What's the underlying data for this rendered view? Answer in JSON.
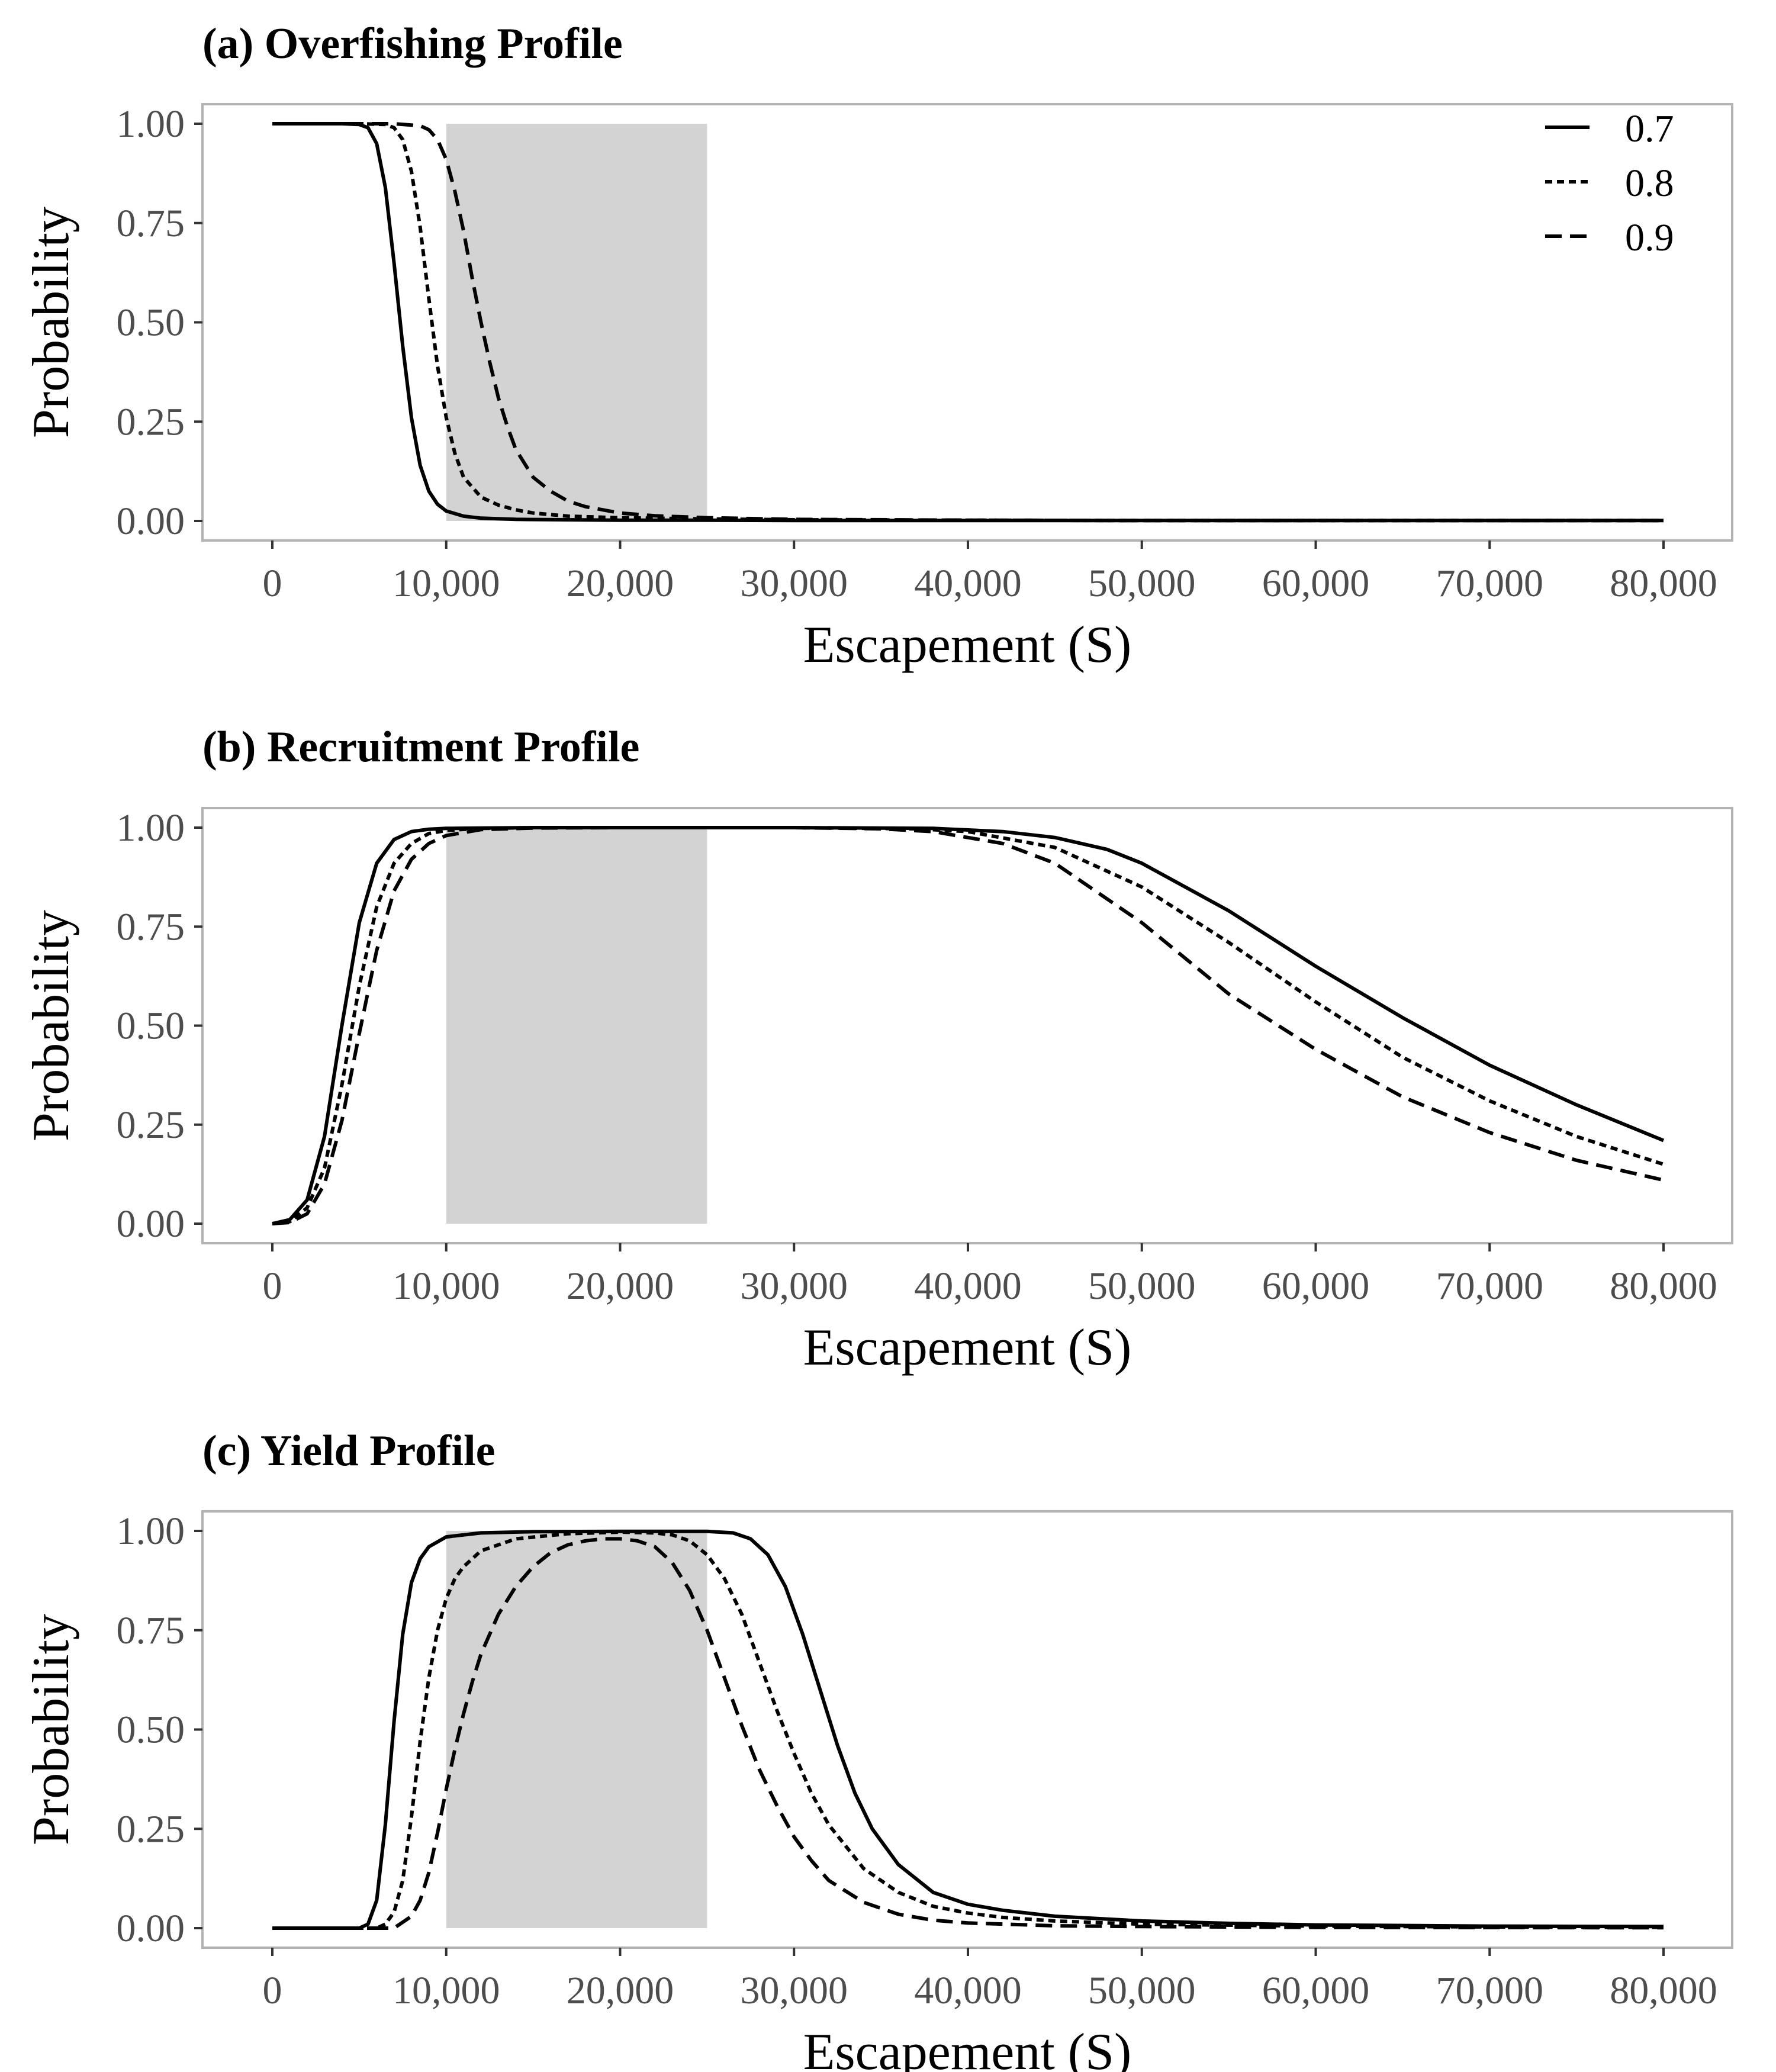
{
  "chart_data": [
    {
      "type": "line",
      "title": "(a) Overfishing Profile",
      "xlabel": "Escapement (S)",
      "ylabel": "Probability",
      "xlim": [
        0,
        80000
      ],
      "ylim": [
        0,
        1
      ],
      "x_ticks": [
        "0",
        "10,000",
        "20,000",
        "30,000",
        "40,000",
        "50,000",
        "60,000",
        "70,000",
        "80,000"
      ],
      "y_ticks": [
        "0.00",
        "0.25",
        "0.50",
        "0.75",
        "1.00"
      ],
      "shaded_range": [
        10000,
        25000
      ],
      "shade_color": "#d3d3d3",
      "legend": {
        "placement": "top-right",
        "entries": [
          "0.7",
          "0.8",
          "0.9"
        ]
      },
      "series": [
        {
          "name": "0.7",
          "style": "solid",
          "x": [
            0,
            4000,
            5000,
            5500,
            6000,
            6500,
            7000,
            7500,
            8000,
            8500,
            9000,
            9500,
            10000,
            11000,
            12000,
            14000,
            17000,
            20000,
            25000,
            30000,
            40000,
            50000,
            60000,
            70000,
            80000
          ],
          "y": [
            1.0,
            1.0,
            0.998,
            0.99,
            0.95,
            0.84,
            0.65,
            0.44,
            0.26,
            0.14,
            0.075,
            0.042,
            0.025,
            0.012,
            0.007,
            0.004,
            0.003,
            0.002,
            0.002,
            0.001,
            0.001,
            0.001,
            0.001,
            0.001,
            0.001
          ]
        },
        {
          "name": "0.8",
          "style": "dotted",
          "x": [
            0,
            5000,
            6500,
            7000,
            7500,
            8000,
            8500,
            9000,
            9500,
            10000,
            10500,
            11000,
            12000,
            13000,
            14000,
            15000,
            17000,
            20000,
            25000,
            30000,
            40000,
            50000,
            60000,
            70000,
            80000
          ],
          "y": [
            1.0,
            1.0,
            0.998,
            0.99,
            0.96,
            0.88,
            0.74,
            0.56,
            0.39,
            0.26,
            0.17,
            0.11,
            0.06,
            0.04,
            0.028,
            0.02,
            0.012,
            0.008,
            0.005,
            0.003,
            0.002,
            0.001,
            0.001,
            0.001,
            0.001
          ]
        },
        {
          "name": "0.9",
          "style": "dashed",
          "x": [
            0,
            7000,
            8500,
            9000,
            9500,
            10000,
            10500,
            11000,
            11500,
            12000,
            12500,
            13000,
            13500,
            14000,
            15000,
            16000,
            17000,
            18000,
            20000,
            22000,
            25000,
            30000,
            40000,
            50000,
            60000,
            70000,
            80000
          ],
          "y": [
            1.0,
            1.0,
            0.995,
            0.985,
            0.96,
            0.91,
            0.83,
            0.73,
            0.61,
            0.5,
            0.4,
            0.31,
            0.24,
            0.18,
            0.11,
            0.075,
            0.05,
            0.036,
            0.02,
            0.013,
            0.008,
            0.004,
            0.002,
            0.001,
            0.001,
            0.001,
            0.001
          ]
        }
      ]
    },
    {
      "type": "line",
      "title": "(b) Recruitment Profile",
      "xlabel": "Escapement (S)",
      "ylabel": "Probability",
      "xlim": [
        0,
        80000
      ],
      "ylim": [
        0,
        1
      ],
      "x_ticks": [
        "0",
        "10,000",
        "20,000",
        "30,000",
        "40,000",
        "50,000",
        "60,000",
        "70,000",
        "80,000"
      ],
      "y_ticks": [
        "0.00",
        "0.25",
        "0.50",
        "0.75",
        "1.00"
      ],
      "shaded_range": [
        10000,
        25000
      ],
      "shade_color": "#d3d3d3",
      "series": [
        {
          "name": "0.7",
          "style": "solid",
          "x": [
            0,
            1000,
            2000,
            3000,
            4000,
            5000,
            6000,
            7000,
            8000,
            9000,
            10000,
            12000,
            15000,
            20000,
            30000,
            38000,
            42000,
            45000,
            48000,
            50000,
            55000,
            60000,
            65000,
            70000,
            75000,
            80000
          ],
          "y": [
            0.0,
            0.01,
            0.06,
            0.22,
            0.5,
            0.76,
            0.91,
            0.97,
            0.99,
            0.996,
            0.998,
            0.999,
            1.0,
            1.0,
            1.0,
            0.998,
            0.99,
            0.975,
            0.945,
            0.91,
            0.79,
            0.65,
            0.52,
            0.4,
            0.3,
            0.21
          ]
        },
        {
          "name": "0.8",
          "style": "dotted",
          "x": [
            0,
            1000,
            2000,
            3000,
            4000,
            5000,
            6000,
            7000,
            8000,
            9000,
            10000,
            12000,
            15000,
            20000,
            30000,
            37000,
            40000,
            45000,
            50000,
            55000,
            60000,
            65000,
            70000,
            75000,
            80000
          ],
          "y": [
            0.0,
            0.005,
            0.04,
            0.14,
            0.35,
            0.6,
            0.8,
            0.91,
            0.96,
            0.985,
            0.993,
            0.998,
            1.0,
            1.0,
            1.0,
            0.997,
            0.99,
            0.95,
            0.85,
            0.71,
            0.56,
            0.42,
            0.31,
            0.22,
            0.15
          ]
        },
        {
          "name": "0.9",
          "style": "dashed",
          "x": [
            0,
            1000,
            2000,
            3000,
            4000,
            5000,
            6000,
            7000,
            8000,
            9000,
            10000,
            12000,
            15000,
            20000,
            30000,
            35000,
            38000,
            42000,
            45000,
            50000,
            55000,
            60000,
            65000,
            70000,
            75000,
            80000
          ],
          "y": [
            0.0,
            0.003,
            0.025,
            0.1,
            0.26,
            0.48,
            0.69,
            0.84,
            0.92,
            0.96,
            0.98,
            0.995,
            0.999,
            1.0,
            1.0,
            0.997,
            0.99,
            0.96,
            0.91,
            0.76,
            0.58,
            0.44,
            0.32,
            0.23,
            0.16,
            0.11
          ]
        }
      ]
    },
    {
      "type": "line",
      "title": "(c) Yield Profile",
      "xlabel": "Escapement (S)",
      "ylabel": "Probability",
      "xlim": [
        0,
        80000
      ],
      "ylim": [
        0,
        1
      ],
      "x_ticks": [
        "0",
        "10,000",
        "20,000",
        "30,000",
        "40,000",
        "50,000",
        "60,000",
        "70,000",
        "80,000"
      ],
      "y_ticks": [
        "0.00",
        "0.25",
        "0.50",
        "0.75",
        "1.00"
      ],
      "shaded_range": [
        10000,
        25000
      ],
      "shade_color": "#d3d3d3",
      "series": [
        {
          "name": "0.7",
          "style": "solid",
          "x": [
            0,
            5000,
            5500,
            6000,
            6500,
            7000,
            7500,
            8000,
            8500,
            9000,
            10000,
            12000,
            15000,
            20000,
            25000,
            26500,
            27500,
            28500,
            29500,
            30500,
            31500,
            32500,
            33500,
            34500,
            36000,
            38000,
            40000,
            42000,
            45000,
            50000,
            55000,
            60000,
            70000,
            80000
          ],
          "y": [
            0.0,
            0.0,
            0.01,
            0.07,
            0.26,
            0.52,
            0.74,
            0.87,
            0.93,
            0.96,
            0.985,
            0.995,
            0.998,
            0.999,
            0.999,
            0.995,
            0.98,
            0.94,
            0.86,
            0.74,
            0.6,
            0.46,
            0.34,
            0.25,
            0.16,
            0.09,
            0.06,
            0.045,
            0.03,
            0.018,
            0.012,
            0.008,
            0.005,
            0.004
          ]
        },
        {
          "name": "0.8",
          "style": "dotted",
          "x": [
            0,
            6000,
            6500,
            7000,
            7500,
            8000,
            8500,
            9000,
            9500,
            10000,
            10500,
            11000,
            12000,
            14000,
            17000,
            20000,
            22000,
            23000,
            24000,
            25000,
            26000,
            27000,
            28000,
            29000,
            30000,
            31000,
            32000,
            34000,
            36000,
            38000,
            40000,
            42000,
            45000,
            50000,
            60000,
            70000,
            80000
          ],
          "y": [
            0.0,
            0.0,
            0.01,
            0.04,
            0.12,
            0.28,
            0.47,
            0.63,
            0.75,
            0.83,
            0.88,
            0.91,
            0.95,
            0.98,
            0.993,
            0.997,
            0.995,
            0.99,
            0.975,
            0.94,
            0.88,
            0.79,
            0.67,
            0.55,
            0.44,
            0.34,
            0.26,
            0.15,
            0.09,
            0.055,
            0.038,
            0.027,
            0.018,
            0.01,
            0.005,
            0.003,
            0.002
          ]
        },
        {
          "name": "0.9",
          "style": "dashed",
          "x": [
            0,
            7000,
            8000,
            8500,
            9000,
            9500,
            10000,
            10500,
            11000,
            11500,
            12000,
            13000,
            14000,
            15000,
            16000,
            17000,
            18000,
            19000,
            20000,
            21000,
            22000,
            23000,
            24000,
            25000,
            26000,
            27000,
            28000,
            29000,
            30000,
            31000,
            32000,
            34000,
            36000,
            38000,
            40000,
            45000,
            50000,
            60000,
            80000
          ],
          "y": [
            0.0,
            0.0,
            0.03,
            0.07,
            0.14,
            0.24,
            0.35,
            0.45,
            0.54,
            0.62,
            0.69,
            0.79,
            0.86,
            0.91,
            0.945,
            0.965,
            0.975,
            0.98,
            0.98,
            0.975,
            0.96,
            0.92,
            0.85,
            0.75,
            0.63,
            0.51,
            0.4,
            0.31,
            0.23,
            0.17,
            0.12,
            0.065,
            0.035,
            0.02,
            0.013,
            0.006,
            0.004,
            0.002,
            0.001
          ]
        }
      ]
    }
  ]
}
